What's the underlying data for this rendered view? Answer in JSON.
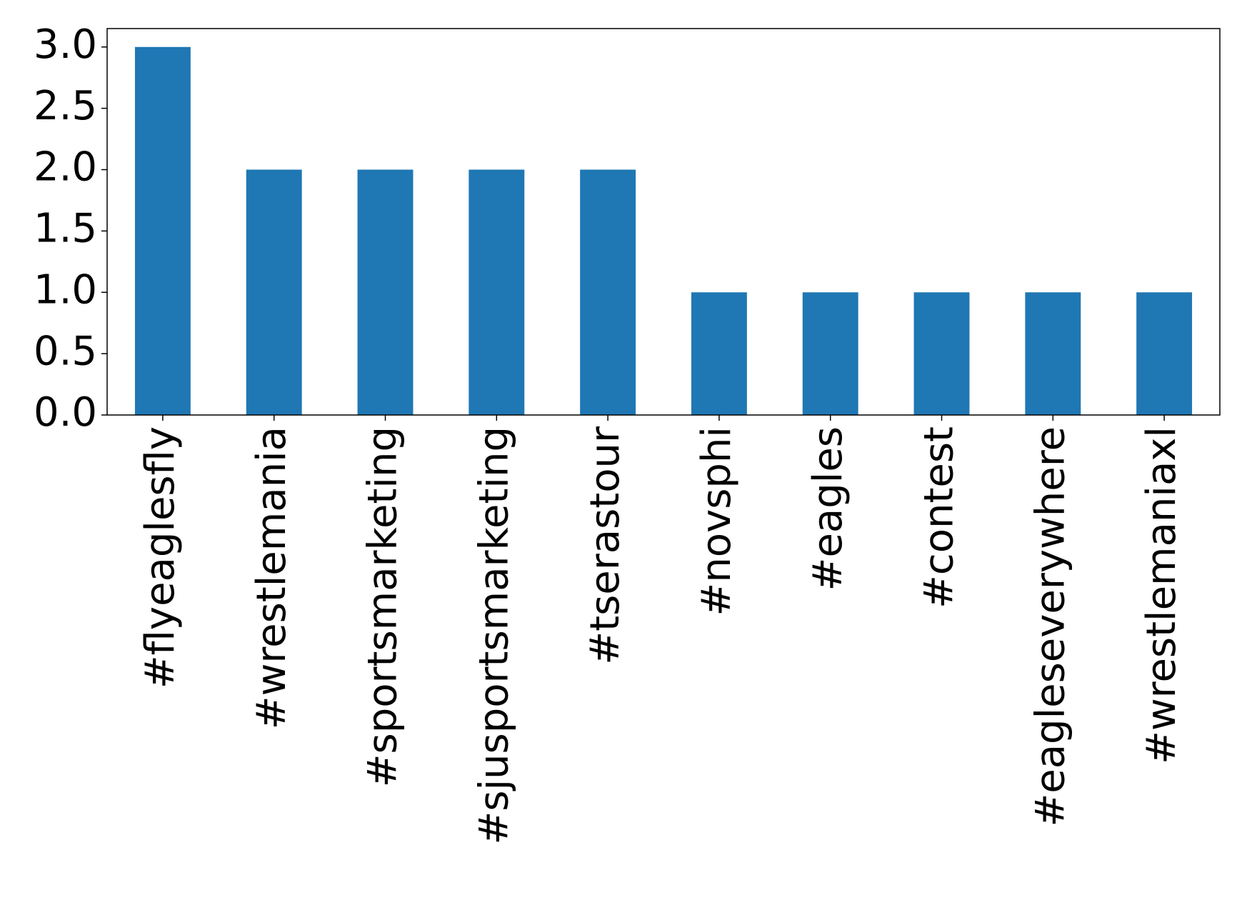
{
  "chart_data": {
    "type": "bar",
    "categories": [
      "#flyeaglesfly",
      "#wrestlemania",
      "#sportsmarketing",
      "#sjusportsmarketing",
      "#tserastour",
      "#novsphi",
      "#eagles",
      "#contest",
      "#eagleseverywhere",
      "#wrestlemaniaxl"
    ],
    "values": [
      3,
      2,
      2,
      2,
      2,
      1,
      1,
      1,
      1,
      1
    ],
    "color": "#1f77b4",
    "ylim": [
      0,
      3.15
    ],
    "yticks": [
      {
        "value": 0,
        "label": "0.0"
      },
      0.5,
      {
        "value": 1,
        "label": "1.0"
      },
      1.5,
      {
        "value": 2,
        "label": "2.0"
      },
      2.5,
      {
        "value": 3,
        "label": "3.0"
      }
    ],
    "grid": false
  }
}
